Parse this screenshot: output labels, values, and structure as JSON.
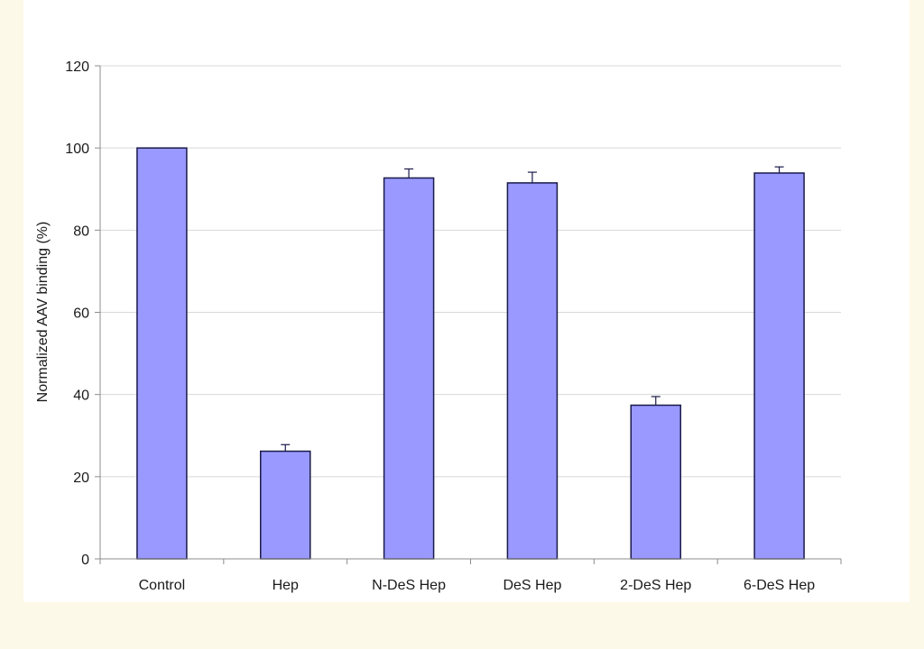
{
  "chart_data": {
    "type": "bar",
    "title": "",
    "xlabel": "",
    "ylabel": "Normalized AAV binding (%)",
    "ylim": [
      0,
      120
    ],
    "yticks": [
      0,
      20,
      40,
      60,
      80,
      100,
      120
    ],
    "grid": true,
    "legend": "none",
    "categories": [
      "Control",
      "Hep",
      "N-DeS Hep",
      "DeS Hep",
      "2-DeS Hep",
      "6-DeS Hep"
    ],
    "values": [
      100,
      26.2,
      92.7,
      91.5,
      37.4,
      93.9
    ],
    "error_plus": [
      0,
      1.6,
      2.2,
      2.6,
      2.1,
      1.5
    ],
    "colors": {
      "bar_fill": "#9999ff",
      "bar_stroke": "#1a1a4a",
      "gridline": "#d8d8d8",
      "axis": "#8c8c8c",
      "text": "#1a1a1a"
    }
  }
}
